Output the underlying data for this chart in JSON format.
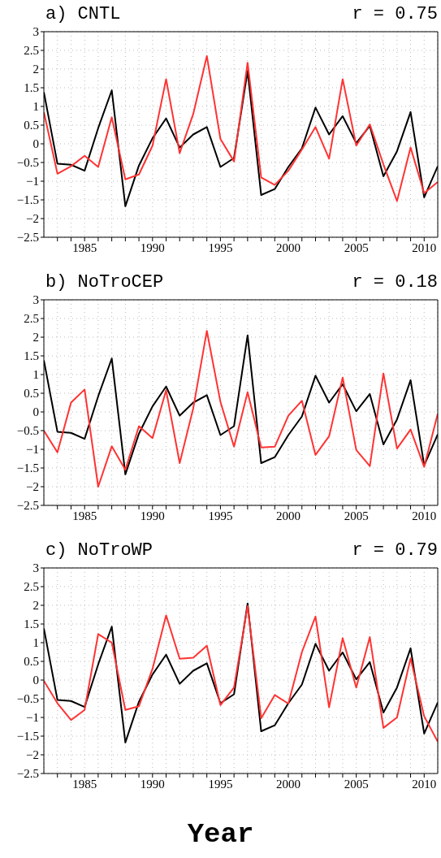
{
  "chart_data": [
    {
      "type": "line",
      "title": "a) CNTL",
      "annotations": [
        "r = 0.75"
      ],
      "x": [
        1982,
        1983,
        1984,
        1985,
        1986,
        1987,
        1988,
        1989,
        1990,
        1991,
        1992,
        1993,
        1994,
        1995,
        1996,
        1997,
        1998,
        1999,
        2000,
        2001,
        2002,
        2003,
        2004,
        2005,
        2006,
        2007,
        2008,
        2009,
        2010,
        2011
      ],
      "series": [
        {
          "color": "#000000",
          "values": [
            1.38,
            -0.53,
            -0.56,
            -0.72,
            0.42,
            1.43,
            -1.67,
            -0.58,
            0.15,
            0.68,
            -0.1,
            0.25,
            0.45,
            -0.62,
            -0.38,
            1.95,
            -1.37,
            -1.21,
            -0.62,
            -0.12,
            0.97,
            0.25,
            0.74,
            0.02,
            0.48,
            -0.87,
            -0.2,
            0.85,
            -1.43,
            -0.6
          ]
        },
        {
          "color": "#ff3333",
          "values": [
            0.85,
            -0.8,
            -0.6,
            -0.32,
            -0.62,
            0.71,
            -0.95,
            -0.82,
            -0.05,
            1.73,
            -0.25,
            0.8,
            2.35,
            0.13,
            -0.47,
            2.17,
            -0.9,
            -1.1,
            -0.72,
            -0.15,
            0.45,
            -0.4,
            1.73,
            -0.05,
            0.52,
            -0.55,
            -1.53,
            -0.1,
            -1.32,
            -1.02
          ]
        }
      ],
      "xlim": [
        1982,
        2011
      ],
      "xticks": [
        {
          "value": 1983,
          "label": null
        },
        {
          "value": 1984,
          "label": null
        },
        1985,
        {
          "value": 1986,
          "label": null
        },
        {
          "value": 1987,
          "label": null
        },
        {
          "value": 1988,
          "label": null
        },
        {
          "value": 1989,
          "label": null
        },
        1990,
        {
          "value": 1991,
          "label": null
        },
        {
          "value": 1992,
          "label": null
        },
        {
          "value": 1993,
          "label": null
        },
        {
          "value": 1994,
          "label": null
        },
        1995,
        {
          "value": 1996,
          "label": null
        },
        {
          "value": 1997,
          "label": null
        },
        {
          "value": 1998,
          "label": null
        },
        {
          "value": 1999,
          "label": null
        },
        2000,
        {
          "value": 2001,
          "label": null
        },
        {
          "value": 2002,
          "label": null
        },
        {
          "value": 2003,
          "label": null
        },
        {
          "value": 2004,
          "label": null
        },
        2005,
        {
          "value": 2006,
          "label": null
        },
        {
          "value": 2007,
          "label": null
        },
        {
          "value": 2008,
          "label": null
        },
        {
          "value": 2009,
          "label": null
        },
        2010
      ],
      "ylim": [
        -2.5,
        3
      ],
      "yticks": [
        -2.5,
        -2,
        -1.5,
        -1,
        -0.5,
        0,
        0.5,
        1,
        1.5,
        2,
        2.5,
        3
      ],
      "grid": true,
      "legend": false,
      "marker": "none",
      "line_style": "solid"
    },
    {
      "type": "line",
      "title": "b) NoTroCEP",
      "annotations": [
        "r = 0.18"
      ],
      "x": [
        1982,
        1983,
        1984,
        1985,
        1986,
        1987,
        1988,
        1989,
        1990,
        1991,
        1992,
        1993,
        1994,
        1995,
        1996,
        1997,
        1998,
        1999,
        2000,
        2001,
        2002,
        2003,
        2004,
        2005,
        2006,
        2007,
        2008,
        2009,
        2010,
        2011
      ],
      "series": [
        {
          "color": "#000000",
          "values": [
            1.38,
            -0.53,
            -0.56,
            -0.72,
            0.42,
            1.43,
            -1.67,
            -0.58,
            0.15,
            0.68,
            -0.1,
            0.25,
            0.45,
            -0.62,
            -0.38,
            2.05,
            -1.37,
            -1.21,
            -0.62,
            -0.12,
            0.97,
            0.25,
            0.74,
            0.02,
            0.48,
            -0.87,
            -0.2,
            0.85,
            -1.43,
            -0.6
          ]
        },
        {
          "color": "#ff3333",
          "values": [
            -0.5,
            -1.08,
            0.25,
            0.6,
            -2.0,
            -0.92,
            -1.55,
            -0.38,
            -0.7,
            0.58,
            -1.37,
            0.1,
            2.17,
            0.27,
            -0.93,
            0.53,
            -0.95,
            -0.93,
            -0.1,
            0.3,
            -1.15,
            -0.65,
            0.92,
            -1.02,
            -1.45,
            1.03,
            -0.98,
            -0.47,
            -1.47,
            -0.05
          ]
        }
      ],
      "xlim": [
        1982,
        2011
      ],
      "xticks": [
        {
          "value": 1983,
          "label": null
        },
        {
          "value": 1984,
          "label": null
        },
        1985,
        {
          "value": 1986,
          "label": null
        },
        {
          "value": 1987,
          "label": null
        },
        {
          "value": 1988,
          "label": null
        },
        {
          "value": 1989,
          "label": null
        },
        1990,
        {
          "value": 1991,
          "label": null
        },
        {
          "value": 1992,
          "label": null
        },
        {
          "value": 1993,
          "label": null
        },
        {
          "value": 1994,
          "label": null
        },
        1995,
        {
          "value": 1996,
          "label": null
        },
        {
          "value": 1997,
          "label": null
        },
        {
          "value": 1998,
          "label": null
        },
        {
          "value": 1999,
          "label": null
        },
        2000,
        {
          "value": 2001,
          "label": null
        },
        {
          "value": 2002,
          "label": null
        },
        {
          "value": 2003,
          "label": null
        },
        {
          "value": 2004,
          "label": null
        },
        2005,
        {
          "value": 2006,
          "label": null
        },
        {
          "value": 2007,
          "label": null
        },
        {
          "value": 2008,
          "label": null
        },
        {
          "value": 2009,
          "label": null
        },
        2010
      ],
      "ylim": [
        -2.5,
        3
      ],
      "yticks": [
        -2.5,
        -2,
        -1.5,
        -1,
        -0.5,
        0,
        0.5,
        1,
        1.5,
        2,
        2.5,
        3
      ],
      "grid": true,
      "legend": false,
      "marker": "none",
      "line_style": "solid"
    },
    {
      "type": "line",
      "title": "c) NoTroWP",
      "annotations": [
        "r = 0.79"
      ],
      "xlabel": "Year",
      "x": [
        1982,
        1983,
        1984,
        1985,
        1986,
        1987,
        1988,
        1989,
        1990,
        1991,
        1992,
        1993,
        1994,
        1995,
        1996,
        1997,
        1998,
        1999,
        2000,
        2001,
        2002,
        2003,
        2004,
        2005,
        2006,
        2007,
        2008,
        2009,
        2010,
        2011
      ],
      "series": [
        {
          "color": "#000000",
          "values": [
            1.38,
            -0.53,
            -0.56,
            -0.72,
            0.42,
            1.43,
            -1.67,
            -0.58,
            0.15,
            0.68,
            -0.1,
            0.25,
            0.45,
            -0.62,
            -0.38,
            2.05,
            -1.37,
            -1.21,
            -0.62,
            -0.12,
            0.97,
            0.25,
            0.74,
            0.02,
            0.48,
            -0.87,
            -0.2,
            0.85,
            -1.43,
            -0.6
          ]
        },
        {
          "color": "#ff3333",
          "values": [
            -0.02,
            -0.62,
            -1.07,
            -0.8,
            1.23,
            1.0,
            -0.8,
            -0.7,
            0.3,
            1.73,
            0.57,
            0.6,
            0.92,
            -0.67,
            -0.2,
            1.98,
            -1.02,
            -0.4,
            -0.63,
            0.75,
            1.7,
            -0.73,
            1.12,
            -0.2,
            1.15,
            -1.28,
            -1.0,
            0.58,
            -0.97,
            -1.65
          ]
        }
      ],
      "xlim": [
        1982,
        2011
      ],
      "xticks": [
        {
          "value": 1983,
          "label": null
        },
        {
          "value": 1984,
          "label": null
        },
        1985,
        {
          "value": 1986,
          "label": null
        },
        {
          "value": 1987,
          "label": null
        },
        {
          "value": 1988,
          "label": null
        },
        {
          "value": 1989,
          "label": null
        },
        1990,
        {
          "value": 1991,
          "label": null
        },
        {
          "value": 1992,
          "label": null
        },
        {
          "value": 1993,
          "label": null
        },
        {
          "value": 1994,
          "label": null
        },
        1995,
        {
          "value": 1996,
          "label": null
        },
        {
          "value": 1997,
          "label": null
        },
        {
          "value": 1998,
          "label": null
        },
        {
          "value": 1999,
          "label": null
        },
        2000,
        {
          "value": 2001,
          "label": null
        },
        {
          "value": 2002,
          "label": null
        },
        {
          "value": 2003,
          "label": null
        },
        {
          "value": 2004,
          "label": null
        },
        2005,
        {
          "value": 2006,
          "label": null
        },
        {
          "value": 2007,
          "label": null
        },
        {
          "value": 2008,
          "label": null
        },
        {
          "value": 2009,
          "label": null
        },
        2010
      ],
      "ylim": [
        -2.5,
        3
      ],
      "yticks": [
        -2.5,
        -2,
        -1.5,
        -1,
        -0.5,
        0,
        0.5,
        1,
        1.5,
        2,
        2.5,
        3
      ],
      "grid": true,
      "legend": false,
      "marker": "none",
      "line_style": "solid"
    }
  ]
}
